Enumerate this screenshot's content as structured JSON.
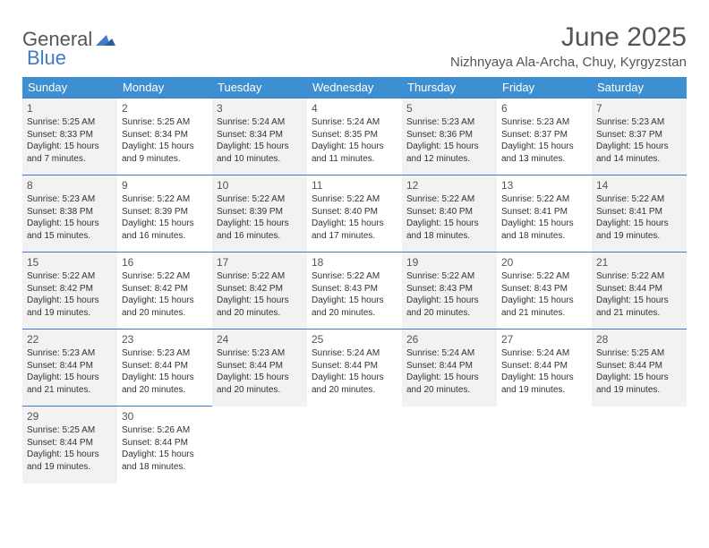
{
  "logo": {
    "text1": "General",
    "text2": "Blue"
  },
  "title": "June 2025",
  "location": "Nizhnyaya Ala-Archa, Chuy, Kyrgyzstan",
  "headers": [
    "Sunday",
    "Monday",
    "Tuesday",
    "Wednesday",
    "Thursday",
    "Friday",
    "Saturday"
  ],
  "colors": {
    "header_bg": "#3d8fd1",
    "header_text": "#ffffff",
    "border": "#3d7cc9",
    "alt_cell_bg": "#f2f2f2",
    "text": "#333333",
    "title_text": "#555555"
  },
  "weeks": [
    [
      {
        "day": "1",
        "sunrise": "Sunrise: 5:25 AM",
        "sunset": "Sunset: 8:33 PM",
        "d1": "Daylight: 15 hours",
        "d2": "and 7 minutes."
      },
      {
        "day": "2",
        "sunrise": "Sunrise: 5:25 AM",
        "sunset": "Sunset: 8:34 PM",
        "d1": "Daylight: 15 hours",
        "d2": "and 9 minutes."
      },
      {
        "day": "3",
        "sunrise": "Sunrise: 5:24 AM",
        "sunset": "Sunset: 8:34 PM",
        "d1": "Daylight: 15 hours",
        "d2": "and 10 minutes."
      },
      {
        "day": "4",
        "sunrise": "Sunrise: 5:24 AM",
        "sunset": "Sunset: 8:35 PM",
        "d1": "Daylight: 15 hours",
        "d2": "and 11 minutes."
      },
      {
        "day": "5",
        "sunrise": "Sunrise: 5:23 AM",
        "sunset": "Sunset: 8:36 PM",
        "d1": "Daylight: 15 hours",
        "d2": "and 12 minutes."
      },
      {
        "day": "6",
        "sunrise": "Sunrise: 5:23 AM",
        "sunset": "Sunset: 8:37 PM",
        "d1": "Daylight: 15 hours",
        "d2": "and 13 minutes."
      },
      {
        "day": "7",
        "sunrise": "Sunrise: 5:23 AM",
        "sunset": "Sunset: 8:37 PM",
        "d1": "Daylight: 15 hours",
        "d2": "and 14 minutes."
      }
    ],
    [
      {
        "day": "8",
        "sunrise": "Sunrise: 5:23 AM",
        "sunset": "Sunset: 8:38 PM",
        "d1": "Daylight: 15 hours",
        "d2": "and 15 minutes."
      },
      {
        "day": "9",
        "sunrise": "Sunrise: 5:22 AM",
        "sunset": "Sunset: 8:39 PM",
        "d1": "Daylight: 15 hours",
        "d2": "and 16 minutes."
      },
      {
        "day": "10",
        "sunrise": "Sunrise: 5:22 AM",
        "sunset": "Sunset: 8:39 PM",
        "d1": "Daylight: 15 hours",
        "d2": "and 16 minutes."
      },
      {
        "day": "11",
        "sunrise": "Sunrise: 5:22 AM",
        "sunset": "Sunset: 8:40 PM",
        "d1": "Daylight: 15 hours",
        "d2": "and 17 minutes."
      },
      {
        "day": "12",
        "sunrise": "Sunrise: 5:22 AM",
        "sunset": "Sunset: 8:40 PM",
        "d1": "Daylight: 15 hours",
        "d2": "and 18 minutes."
      },
      {
        "day": "13",
        "sunrise": "Sunrise: 5:22 AM",
        "sunset": "Sunset: 8:41 PM",
        "d1": "Daylight: 15 hours",
        "d2": "and 18 minutes."
      },
      {
        "day": "14",
        "sunrise": "Sunrise: 5:22 AM",
        "sunset": "Sunset: 8:41 PM",
        "d1": "Daylight: 15 hours",
        "d2": "and 19 minutes."
      }
    ],
    [
      {
        "day": "15",
        "sunrise": "Sunrise: 5:22 AM",
        "sunset": "Sunset: 8:42 PM",
        "d1": "Daylight: 15 hours",
        "d2": "and 19 minutes."
      },
      {
        "day": "16",
        "sunrise": "Sunrise: 5:22 AM",
        "sunset": "Sunset: 8:42 PM",
        "d1": "Daylight: 15 hours",
        "d2": "and 20 minutes."
      },
      {
        "day": "17",
        "sunrise": "Sunrise: 5:22 AM",
        "sunset": "Sunset: 8:42 PM",
        "d1": "Daylight: 15 hours",
        "d2": "and 20 minutes."
      },
      {
        "day": "18",
        "sunrise": "Sunrise: 5:22 AM",
        "sunset": "Sunset: 8:43 PM",
        "d1": "Daylight: 15 hours",
        "d2": "and 20 minutes."
      },
      {
        "day": "19",
        "sunrise": "Sunrise: 5:22 AM",
        "sunset": "Sunset: 8:43 PM",
        "d1": "Daylight: 15 hours",
        "d2": "and 20 minutes."
      },
      {
        "day": "20",
        "sunrise": "Sunrise: 5:22 AM",
        "sunset": "Sunset: 8:43 PM",
        "d1": "Daylight: 15 hours",
        "d2": "and 21 minutes."
      },
      {
        "day": "21",
        "sunrise": "Sunrise: 5:22 AM",
        "sunset": "Sunset: 8:44 PM",
        "d1": "Daylight: 15 hours",
        "d2": "and 21 minutes."
      }
    ],
    [
      {
        "day": "22",
        "sunrise": "Sunrise: 5:23 AM",
        "sunset": "Sunset: 8:44 PM",
        "d1": "Daylight: 15 hours",
        "d2": "and 21 minutes."
      },
      {
        "day": "23",
        "sunrise": "Sunrise: 5:23 AM",
        "sunset": "Sunset: 8:44 PM",
        "d1": "Daylight: 15 hours",
        "d2": "and 20 minutes."
      },
      {
        "day": "24",
        "sunrise": "Sunrise: 5:23 AM",
        "sunset": "Sunset: 8:44 PM",
        "d1": "Daylight: 15 hours",
        "d2": "and 20 minutes."
      },
      {
        "day": "25",
        "sunrise": "Sunrise: 5:24 AM",
        "sunset": "Sunset: 8:44 PM",
        "d1": "Daylight: 15 hours",
        "d2": "and 20 minutes."
      },
      {
        "day": "26",
        "sunrise": "Sunrise: 5:24 AM",
        "sunset": "Sunset: 8:44 PM",
        "d1": "Daylight: 15 hours",
        "d2": "and 20 minutes."
      },
      {
        "day": "27",
        "sunrise": "Sunrise: 5:24 AM",
        "sunset": "Sunset: 8:44 PM",
        "d1": "Daylight: 15 hours",
        "d2": "and 19 minutes."
      },
      {
        "day": "28",
        "sunrise": "Sunrise: 5:25 AM",
        "sunset": "Sunset: 8:44 PM",
        "d1": "Daylight: 15 hours",
        "d2": "and 19 minutes."
      }
    ],
    [
      {
        "day": "29",
        "sunrise": "Sunrise: 5:25 AM",
        "sunset": "Sunset: 8:44 PM",
        "d1": "Daylight: 15 hours",
        "d2": "and 19 minutes."
      },
      {
        "day": "30",
        "sunrise": "Sunrise: 5:26 AM",
        "sunset": "Sunset: 8:44 PM",
        "d1": "Daylight: 15 hours",
        "d2": "and 18 minutes."
      },
      null,
      null,
      null,
      null,
      null
    ]
  ]
}
